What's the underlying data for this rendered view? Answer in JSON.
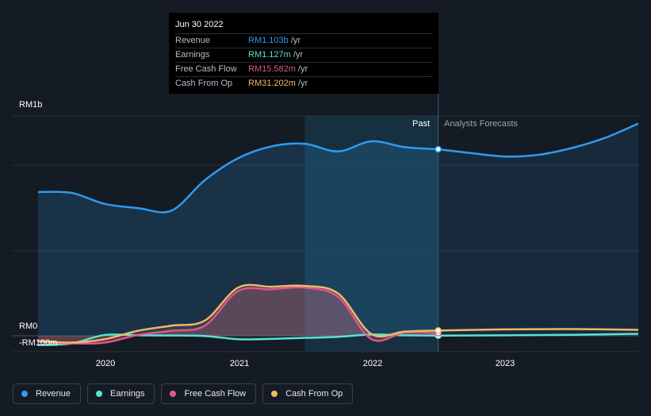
{
  "tooltip": {
    "date": "Jun 30 2022",
    "rows": [
      {
        "label": "Revenue",
        "value": "RM1.103b",
        "unit": "/yr",
        "color": "#2d9bf0"
      },
      {
        "label": "Earnings",
        "value": "RM1.127m",
        "unit": "/yr",
        "color": "#5ce1d0"
      },
      {
        "label": "Free Cash Flow",
        "value": "RM15.582m",
        "unit": "/yr",
        "color": "#e05590"
      },
      {
        "label": "Cash From Op",
        "value": "RM31.202m",
        "unit": "/yr",
        "color": "#f2b866"
      }
    ]
  },
  "segments": {
    "past": "Past",
    "forecast": "Analysts Forecasts"
  },
  "legend": [
    {
      "label": "Revenue",
      "color": "#2d9bf0"
    },
    {
      "label": "Earnings",
      "color": "#5ce1d0"
    },
    {
      "label": "Free Cash Flow",
      "color": "#e05590"
    },
    {
      "label": "Cash From Op",
      "color": "#f2b866"
    }
  ],
  "chart_data": {
    "type": "line",
    "title": "",
    "unit": "RM millions",
    "y_tick_labels": [
      "RM1b",
      "RM0",
      "-RM100m"
    ],
    "y_ticks": [
      1300,
      0,
      -100
    ],
    "ylim": [
      -100,
      1300
    ],
    "xlim": [
      2019.5,
      2024.0
    ],
    "x_tick_labels": [
      "2020",
      "2021",
      "2022",
      "2023"
    ],
    "x_ticks": [
      2020,
      2021,
      2022,
      2023
    ],
    "forecast_start": 2022.5,
    "highlight_start": 2021.5,
    "series": [
      {
        "name": "Revenue",
        "color": "#2d9bf0",
        "x": [
          2019.5,
          2019.75,
          2020.0,
          2020.25,
          2020.5,
          2020.75,
          2021.0,
          2021.25,
          2021.5,
          2021.75,
          2022.0,
          2022.25,
          2022.5
        ],
        "values": [
          850,
          845,
          780,
          755,
          740,
          920,
          1050,
          1120,
          1135,
          1090,
          1150,
          1115,
          1103
        ],
        "forecast_x": [
          2022.5,
          2022.75,
          2023.0,
          2023.25,
          2023.5,
          2023.75,
          2024.0
        ],
        "forecast_values": [
          1103,
          1080,
          1060,
          1070,
          1110,
          1170,
          1255
        ]
      },
      {
        "name": "Earnings",
        "color": "#5ce1d0",
        "x": [
          2019.5,
          2019.75,
          2020.0,
          2020.25,
          2020.5,
          2020.75,
          2021.0,
          2021.25,
          2021.5,
          2021.75,
          2022.0,
          2022.25,
          2022.5
        ],
        "values": [
          -55,
          -45,
          5,
          3,
          2,
          -1,
          -20,
          -18,
          -12,
          -6,
          8,
          3,
          1.127
        ],
        "forecast_x": [
          2022.5,
          2023.0,
          2023.5,
          2024.0
        ],
        "forecast_values": [
          1.127,
          3,
          6,
          12
        ]
      },
      {
        "name": "Free Cash Flow",
        "color": "#e05590",
        "x": [
          2019.5,
          2019.75,
          2020.0,
          2020.25,
          2020.5,
          2020.75,
          2021.0,
          2021.25,
          2021.5,
          2021.75,
          2022.0,
          2022.25,
          2022.5
        ],
        "values": [
          -35,
          -45,
          -40,
          5,
          30,
          60,
          265,
          275,
          285,
          230,
          -20,
          20,
          15.582
        ]
      },
      {
        "name": "Cash From Op",
        "color": "#f2b866",
        "x": [
          2019.5,
          2019.75,
          2020.0,
          2020.25,
          2020.5,
          2020.75,
          2021.0,
          2021.25,
          2021.5,
          2021.75,
          2022.0,
          2022.25,
          2022.5
        ],
        "values": [
          -30,
          -40,
          -20,
          30,
          60,
          90,
          285,
          290,
          295,
          250,
          10,
          25,
          31.202
        ],
        "forecast_x": [
          2022.5,
          2023.0,
          2023.5,
          2024.0
        ],
        "forecast_values": [
          31.202,
          38,
          40,
          35
        ]
      }
    ]
  }
}
